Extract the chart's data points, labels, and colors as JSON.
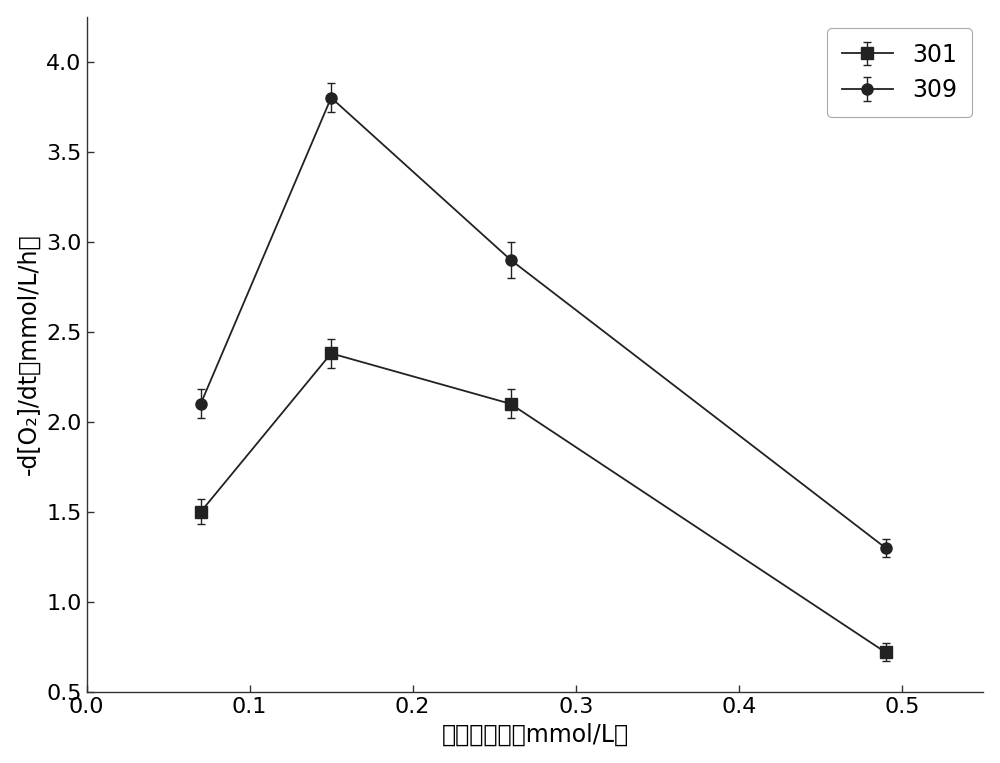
{
  "series_301": {
    "x": [
      0.07,
      0.15,
      0.26,
      0.49
    ],
    "y": [
      1.5,
      2.38,
      2.1,
      0.72
    ],
    "yerr": [
      0.07,
      0.08,
      0.08,
      0.05
    ],
    "color": "#222222",
    "marker": "s",
    "label": "301"
  },
  "series_309": {
    "x": [
      0.07,
      0.15,
      0.26,
      0.49
    ],
    "y": [
      2.1,
      3.8,
      2.9,
      1.3
    ],
    "yerr": [
      0.08,
      0.08,
      0.1,
      0.05
    ],
    "color": "#222222",
    "marker": "o",
    "label": "309"
  },
  "xlabel": "硬化物浓度（mmol/L）",
  "ylabel": "-d[O₂]/dt（mmol/L/h）",
  "xlim": [
    0.0,
    0.55
  ],
  "ylim": [
    0.5,
    4.25
  ],
  "xticks": [
    0.0,
    0.1,
    0.2,
    0.3,
    0.4,
    0.5
  ],
  "yticks": [
    0.5,
    1.0,
    1.5,
    2.0,
    2.5,
    3.0,
    3.5,
    4.0
  ],
  "xtick_labels": [
    "0.0",
    "0.1",
    "0.2",
    "0.3",
    "0.4",
    "0.5"
  ],
  "ytick_labels": [
    "0.5",
    "1.0",
    "1.5",
    "2.0",
    "2.5",
    "3.0",
    "3.5",
    "4.0"
  ],
  "background_color": "#ffffff",
  "markersize": 8,
  "linewidth": 1.3,
  "capsize": 3,
  "elinewidth": 1.0,
  "tick_fontsize": 16,
  "label_fontsize": 17,
  "legend_fontsize": 17
}
